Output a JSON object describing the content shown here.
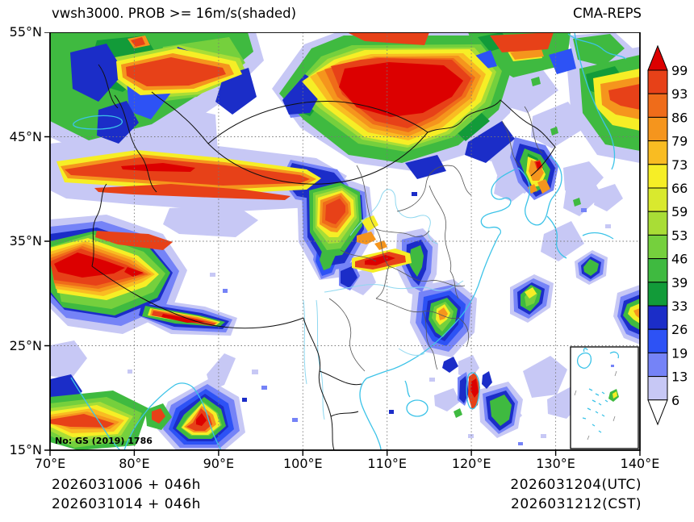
{
  "header": {
    "title": "vwsh3000. PROB >= 16m/s(shaded)",
    "model": "CMA-REPS"
  },
  "map": {
    "note": "No: GS (2019) 1786",
    "x_axis_ticks": [
      "70°E",
      "80°E",
      "90°E",
      "100°E",
      "110°E",
      "120°E",
      "130°E",
      "140°E"
    ],
    "y_axis_ticks": [
      "55°N",
      "45°N",
      "35°N",
      "25°N",
      "15°N"
    ]
  },
  "colorbar": {
    "levels": [
      "99",
      "93",
      "86",
      "79",
      "73",
      "66",
      "59",
      "53",
      "46",
      "39",
      "33",
      "26",
      "19",
      "13",
      "6"
    ],
    "colors_top_to_bottom": [
      "#dc0000",
      "#e74118",
      "#ef6c1a",
      "#f5951d",
      "#f9bc22",
      "#f6ee26",
      "#d9e92e",
      "#a9dd36",
      "#75d03d",
      "#3fba40",
      "#129b39",
      "#1b2dc8",
      "#2d52f5",
      "#7583f7",
      "#c7c8f5"
    ],
    "under_color": "#ffffff"
  },
  "footer": {
    "init_utc": "2026031006 + 046h",
    "init_cst": "2026031014 + 046h",
    "valid_utc": "2026031204(UTC)",
    "valid_cst": "2026031212(CST)"
  },
  "chart_data": {
    "type": "heatmap",
    "title": "vwsh3000. PROB >= 16m/s(shaded)",
    "model": "CMA-REPS",
    "variable": "vwsh3000",
    "threshold": "16m/s",
    "lon_range": [
      "70°E",
      "140°E"
    ],
    "lat_range": [
      "15°N",
      "55°N"
    ],
    "prob_levels_percent": [
      6,
      13,
      19,
      26,
      33,
      39,
      46,
      53,
      59,
      66,
      73,
      79,
      86,
      93,
      99
    ],
    "legend_position": "right",
    "grid": "dashed 10-degree graticule"
  }
}
